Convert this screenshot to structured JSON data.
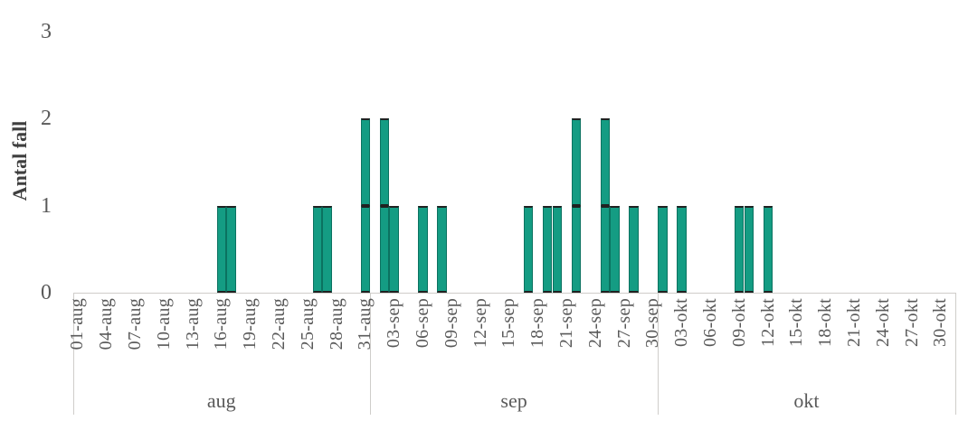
{
  "chart_data": {
    "type": "bar",
    "title": "",
    "ylabel": "Antal fall",
    "xlabel": "",
    "ylim": [
      0,
      3
    ],
    "yticks": [
      0,
      1,
      2,
      3
    ],
    "grid": "off",
    "legend": "none",
    "x_range": [
      "01-aug",
      "31-okt"
    ],
    "xtick_labels": [
      "01-aug",
      "04-aug",
      "07-aug",
      "10-aug",
      "13-aug",
      "16-aug",
      "19-aug",
      "22-aug",
      "25-aug",
      "28-aug",
      "31-aug",
      "03-sep",
      "06-sep",
      "09-sep",
      "12-sep",
      "15-sep",
      "18-sep",
      "21-sep",
      "24-sep",
      "27-sep",
      "30-sep",
      "03-okt",
      "06-okt",
      "09-okt",
      "12-okt",
      "15-okt",
      "18-okt",
      "21-okt",
      "24-okt",
      "27-okt",
      "30-okt"
    ],
    "xtick_step_days": 3,
    "month_groups": [
      {
        "label": "aug",
        "days": 31
      },
      {
        "label": "sep",
        "days": 30
      },
      {
        "label": "okt",
        "days": 31
      }
    ],
    "series": [
      {
        "date": "16-aug",
        "count": 1
      },
      {
        "date": "17-aug",
        "count": 1
      },
      {
        "date": "26-aug",
        "count": 1
      },
      {
        "date": "27-aug",
        "count": 1
      },
      {
        "date": "31-aug",
        "count": 2
      },
      {
        "date": "02-sep",
        "count": 2
      },
      {
        "date": "03-sep",
        "count": 1
      },
      {
        "date": "06-sep",
        "count": 1
      },
      {
        "date": "08-sep",
        "count": 1
      },
      {
        "date": "17-sep",
        "count": 1
      },
      {
        "date": "19-sep",
        "count": 1
      },
      {
        "date": "20-sep",
        "count": 1
      },
      {
        "date": "22-sep",
        "count": 2
      },
      {
        "date": "25-sep",
        "count": 2
      },
      {
        "date": "26-sep",
        "count": 1
      },
      {
        "date": "28-sep",
        "count": 1
      },
      {
        "date": "01-okt",
        "count": 1
      },
      {
        "date": "03-okt",
        "count": 1
      },
      {
        "date": "09-okt",
        "count": 1
      },
      {
        "date": "10-okt",
        "count": 1
      },
      {
        "date": "12-okt",
        "count": 1
      }
    ],
    "colors": {
      "bar_fill": "#149c83",
      "bar_cap": "#212121",
      "bar_side": "#0b7260",
      "axis_line": "#cfcdca",
      "tick_text": "#595959",
      "axis_title_text": "#3f3f3f"
    }
  }
}
